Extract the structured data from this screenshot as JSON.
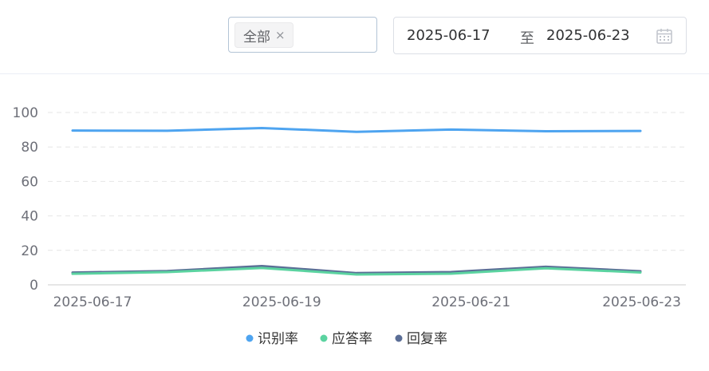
{
  "filter": {
    "tag_label": "全部",
    "tag_close": "×"
  },
  "date_range": {
    "start": "2025-06-17",
    "separator": "至",
    "end": "2025-06-23"
  },
  "colors": {
    "series_1": "#4ea4f0",
    "series_2": "#5bd3a0",
    "series_3": "#5b6e96",
    "grid": "#e6e6e6",
    "axis": "#cccccc"
  },
  "chart_data": {
    "type": "line",
    "x": [
      "2025-06-17",
      "2025-06-18",
      "2025-06-19",
      "2025-06-20",
      "2025-06-21",
      "2025-06-22",
      "2025-06-23"
    ],
    "x_tick_labels": [
      "2025-06-17",
      "2025-06-19",
      "2025-06-21",
      "2025-06-23"
    ],
    "y_ticks": [
      0,
      20,
      40,
      60,
      80,
      100
    ],
    "ylim": [
      0,
      100
    ],
    "grid": true,
    "legend_position": "bottom-center",
    "series": [
      {
        "name": "识别率",
        "values": [
          89.5,
          89.4,
          91.0,
          88.8,
          90.1,
          89.1,
          89.3
        ]
      },
      {
        "name": "应答率",
        "values": [
          6.4,
          7.4,
          9.8,
          6.0,
          6.5,
          9.6,
          7.2
        ]
      },
      {
        "name": "回复率",
        "values": [
          7.1,
          8.0,
          10.9,
          6.8,
          7.4,
          10.5,
          7.9
        ]
      }
    ]
  }
}
